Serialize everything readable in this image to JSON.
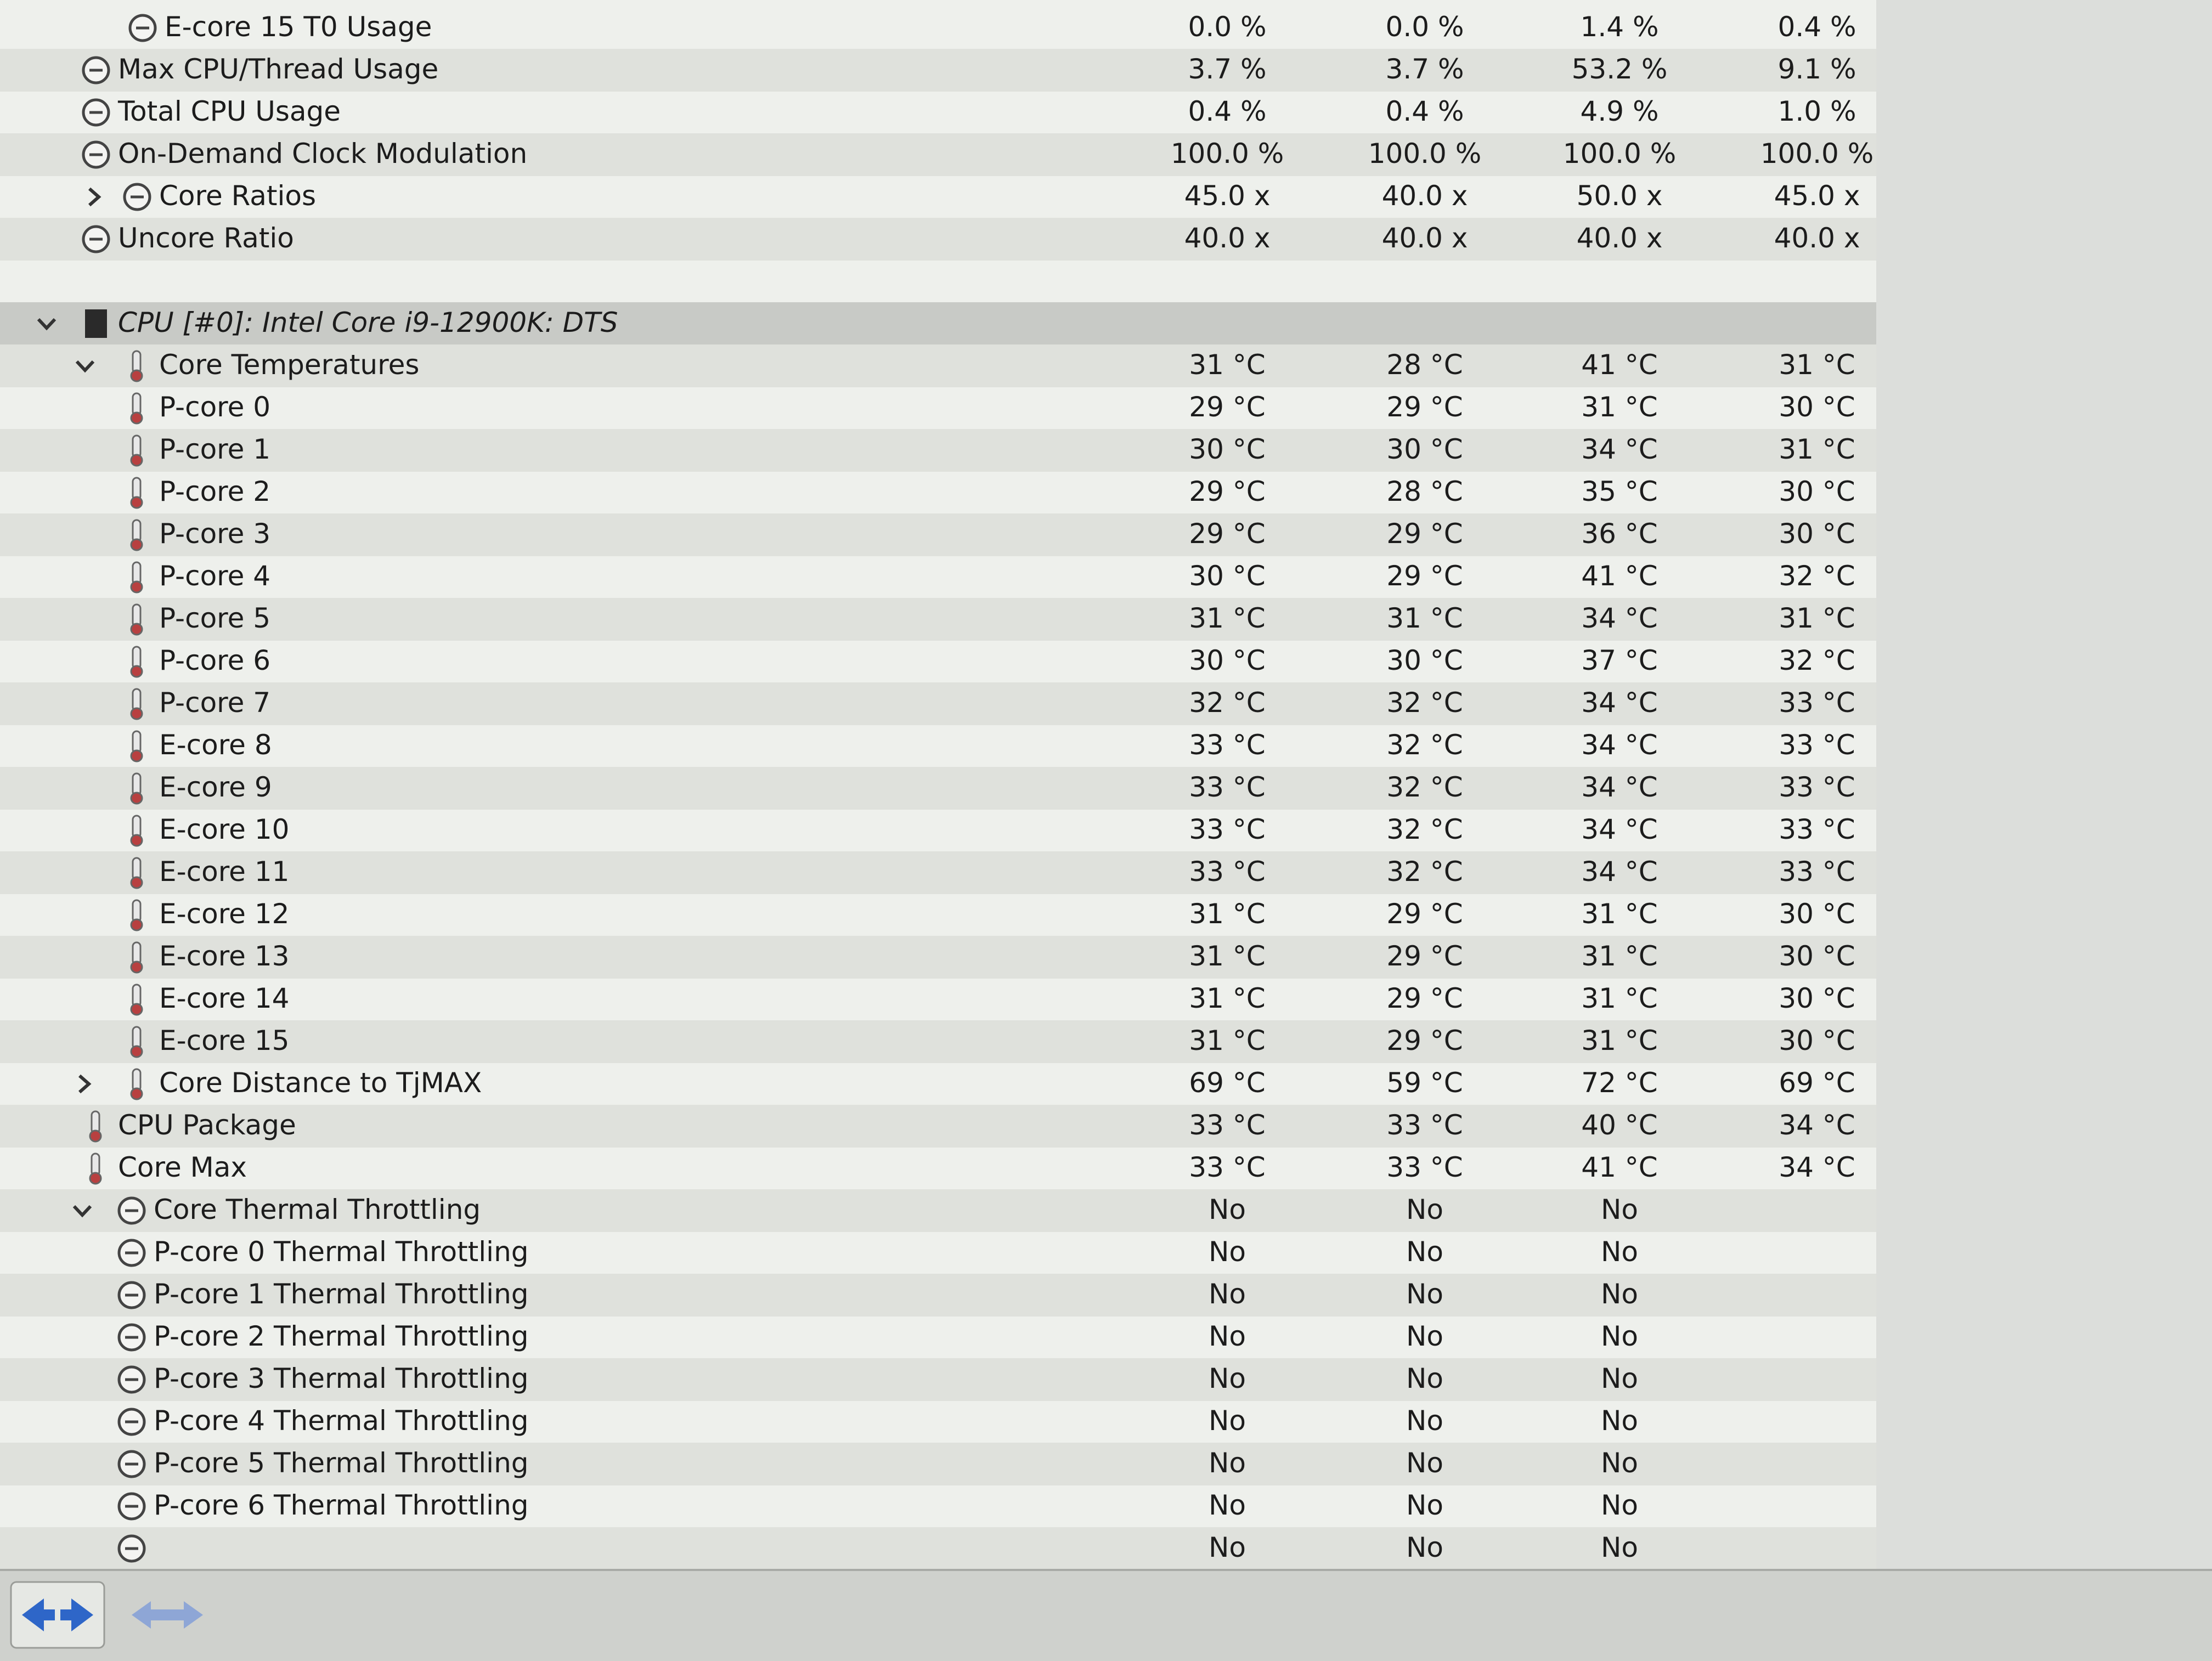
{
  "rows": [
    {
      "label": "E-core 15 T0 Usage",
      "values": [
        "0.0 %",
        "0.0 %",
        "1.4 %",
        "0.4 %"
      ]
    },
    {
      "label": "Max CPU/Thread Usage",
      "values": [
        "3.7 %",
        "3.7 %",
        "53.2 %",
        "9.1 %"
      ]
    },
    {
      "label": "Total CPU Usage",
      "values": [
        "0.4 %",
        "0.4 %",
        "4.9 %",
        "1.0 %"
      ]
    },
    {
      "label": "On-Demand Clock Modulation",
      "values": [
        "100.0 %",
        "100.0 %",
        "100.0 %",
        "100.0 %"
      ]
    },
    {
      "label": "Core Ratios",
      "values": [
        "45.0 x",
        "40.0 x",
        "50.0 x",
        "45.0 x"
      ]
    },
    {
      "label": "Uncore Ratio",
      "values": [
        "40.0 x",
        "40.0 x",
        "40.0 x",
        "40.0 x"
      ]
    },
    {
      "label": "CPU [#0]: Intel Core i9-12900K: DTS",
      "values": []
    },
    {
      "label": "Core Temperatures",
      "values": [
        "31 °C",
        "28 °C",
        "41 °C",
        "31 °C"
      ]
    },
    {
      "label": "P-core 0",
      "values": [
        "29 °C",
        "29 °C",
        "31 °C",
        "30 °C"
      ]
    },
    {
      "label": "P-core 1",
      "values": [
        "30 °C",
        "30 °C",
        "34 °C",
        "31 °C"
      ]
    },
    {
      "label": "P-core 2",
      "values": [
        "29 °C",
        "28 °C",
        "35 °C",
        "30 °C"
      ]
    },
    {
      "label": "P-core 3",
      "values": [
        "29 °C",
        "29 °C",
        "36 °C",
        "30 °C"
      ]
    },
    {
      "label": "P-core 4",
      "values": [
        "30 °C",
        "29 °C",
        "41 °C",
        "32 °C"
      ]
    },
    {
      "label": "P-core 5",
      "values": [
        "31 °C",
        "31 °C",
        "34 °C",
        "31 °C"
      ]
    },
    {
      "label": "P-core 6",
      "values": [
        "30 °C",
        "30 °C",
        "37 °C",
        "32 °C"
      ]
    },
    {
      "label": "P-core 7",
      "values": [
        "32 °C",
        "32 °C",
        "34 °C",
        "33 °C"
      ]
    },
    {
      "label": "E-core 8",
      "values": [
        "33 °C",
        "32 °C",
        "34 °C",
        "33 °C"
      ]
    },
    {
      "label": "E-core 9",
      "values": [
        "33 °C",
        "32 °C",
        "34 °C",
        "33 °C"
      ]
    },
    {
      "label": "E-core 10",
      "values": [
        "33 °C",
        "32 °C",
        "34 °C",
        "33 °C"
      ]
    },
    {
      "label": "E-core 11",
      "values": [
        "33 °C",
        "32 °C",
        "34 °C",
        "33 °C"
      ]
    },
    {
      "label": "E-core 12",
      "values": [
        "31 °C",
        "29 °C",
        "31 °C",
        "30 °C"
      ]
    },
    {
      "label": "E-core 13",
      "values": [
        "31 °C",
        "29 °C",
        "31 °C",
        "30 °C"
      ]
    },
    {
      "label": "E-core 14",
      "values": [
        "31 °C",
        "29 °C",
        "31 °C",
        "30 °C"
      ]
    },
    {
      "label": "E-core 15",
      "values": [
        "31 °C",
        "29 °C",
        "31 °C",
        "30 °C"
      ]
    },
    {
      "label": "Core Distance to TjMAX",
      "values": [
        "69 °C",
        "59 °C",
        "72 °C",
        "69 °C"
      ]
    },
    {
      "label": "CPU Package",
      "values": [
        "33 °C",
        "33 °C",
        "40 °C",
        "34 °C"
      ]
    },
    {
      "label": "Core Max",
      "values": [
        "33 °C",
        "33 °C",
        "41 °C",
        "34 °C"
      ]
    },
    {
      "label": "Core Thermal Throttling",
      "values": [
        "No",
        "No",
        "No"
      ]
    },
    {
      "label": "P-core 0 Thermal Throttling",
      "values": [
        "No",
        "No",
        "No"
      ]
    },
    {
      "label": "P-core 1 Thermal Throttling",
      "values": [
        "No",
        "No",
        "No"
      ]
    },
    {
      "label": "P-core 2 Thermal Throttling",
      "values": [
        "No",
        "No",
        "No"
      ]
    },
    {
      "label": "P-core 3 Thermal Throttling",
      "values": [
        "No",
        "No",
        "No"
      ]
    },
    {
      "label": "P-core 4 Thermal Throttling",
      "values": [
        "No",
        "No",
        "No"
      ]
    },
    {
      "label": "P-core 5 Thermal Throttling",
      "values": [
        "No",
        "No",
        "No"
      ]
    },
    {
      "label": "P-core 6 Thermal Throttling",
      "values": [
        "No",
        "No",
        "No"
      ]
    },
    {
      "label": null,
      "values": [
        "No",
        "No",
        "No"
      ]
    }
  ]
}
